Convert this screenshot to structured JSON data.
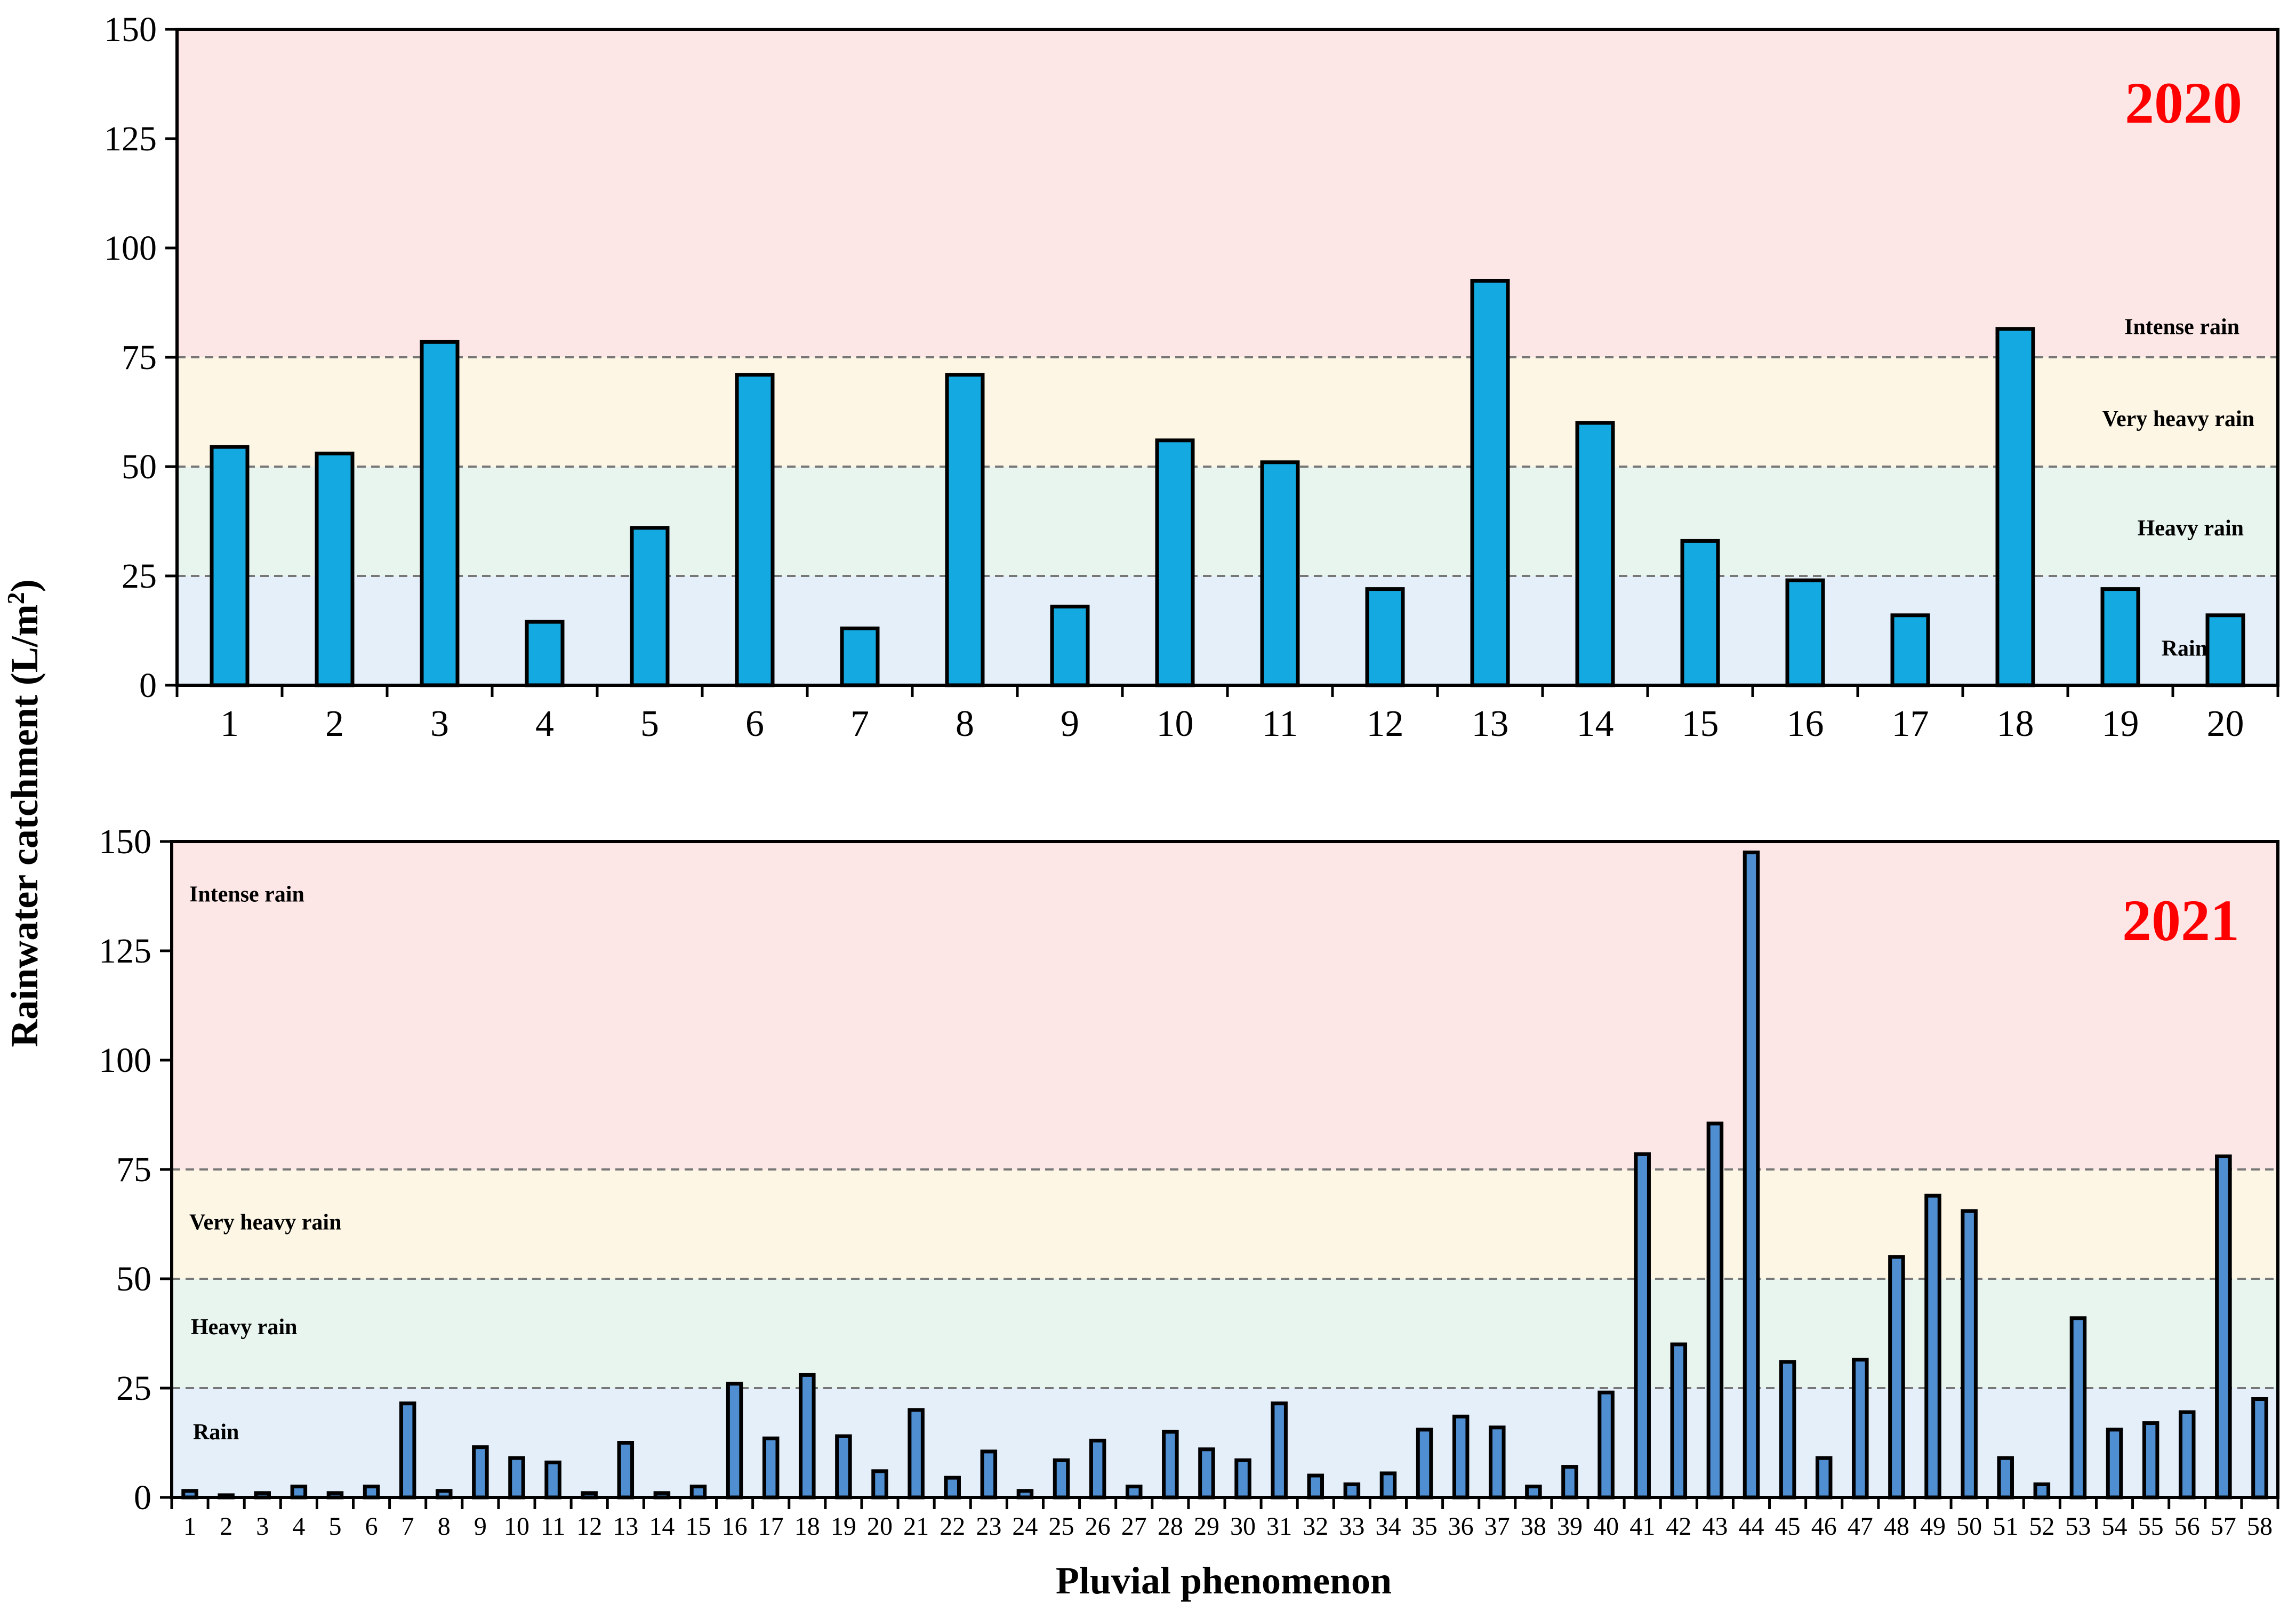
{
  "figure": {
    "ylabel_main": "Rainwater catchment (L/m",
    "ylabel_sup": "2",
    "ylabel_close": ")",
    "xlabel": "Pluvial phenomenon"
  },
  "colors": {
    "intense": "#fde6e6",
    "very_heavy": "#fdf6e4",
    "heavy": "#e8f5ee",
    "rain": "#e5eff9",
    "bar_2020": "#14a9e0",
    "bar_2021": "#4f8ed0",
    "year_text": "#ff0000",
    "threshold_line": "#777777"
  },
  "chart_data": [
    {
      "type": "bar",
      "panel": "2020",
      "year_label": "2020",
      "ylim": [
        0,
        150
      ],
      "yticks": [
        0,
        25,
        50,
        75,
        100,
        125,
        150
      ],
      "thresholds": [
        25,
        50,
        75
      ],
      "zones": [
        {
          "name": "Rain",
          "from": 0,
          "to": 25
        },
        {
          "name": "Heavy rain",
          "from": 25,
          "to": 50
        },
        {
          "name": "Very  heavy rain",
          "from": 50,
          "to": 75
        },
        {
          "name": "Intense rain",
          "from": 75,
          "to": 150
        }
      ],
      "categories": [
        "1",
        "2",
        "3",
        "4",
        "5",
        "6",
        "7",
        "8",
        "9",
        "10",
        "11",
        "12",
        "13",
        "14",
        "15",
        "16",
        "17",
        "18",
        "19",
        "20"
      ],
      "values": [
        54.5,
        53,
        78.5,
        14.5,
        36,
        71,
        13,
        71,
        18,
        56,
        51,
        22,
        92.5,
        60,
        33,
        24,
        16,
        81.5,
        22,
        16
      ]
    },
    {
      "type": "bar",
      "panel": "2021",
      "year_label": "2021",
      "ylim": [
        0,
        150
      ],
      "yticks": [
        0,
        25,
        50,
        75,
        100,
        125,
        150
      ],
      "thresholds": [
        25,
        50,
        75
      ],
      "zones": [
        {
          "name": "Rain",
          "from": 0,
          "to": 25
        },
        {
          "name": "Heavy rain",
          "from": 25,
          "to": 50
        },
        {
          "name": "Very  heavy rain",
          "from": 50,
          "to": 75
        },
        {
          "name": "Intense rain",
          "from": 75,
          "to": 150
        }
      ],
      "categories": [
        "1",
        "2",
        "3",
        "4",
        "5",
        "6",
        "7",
        "8",
        "9",
        "10",
        "11",
        "12",
        "13",
        "14",
        "15",
        "16",
        "17",
        "18",
        "19",
        "20",
        "21",
        "22",
        "23",
        "24",
        "25",
        "26",
        "27",
        "28",
        "29",
        "30",
        "31",
        "32",
        "33",
        "34",
        "35",
        "36",
        "37",
        "38",
        "39",
        "40",
        "41",
        "42",
        "43",
        "44",
        "45",
        "46",
        "47",
        "48",
        "49",
        "50",
        "51",
        "52",
        "53",
        "54",
        "55",
        "56",
        "57",
        "58"
      ],
      "values": [
        1.5,
        0.5,
        1,
        2.5,
        1,
        2.5,
        21.5,
        1.5,
        11.5,
        9,
        8,
        1,
        12.5,
        1,
        2.5,
        26,
        13.5,
        28,
        14,
        6,
        20,
        4.5,
        10.5,
        1.5,
        8.5,
        13,
        2.5,
        15,
        11,
        8.5,
        21.5,
        5,
        3,
        5.5,
        15.5,
        18.5,
        16,
        2.5,
        7,
        24,
        78.5,
        35,
        85.5,
        147.5,
        31,
        9,
        31.5,
        55,
        69,
        65.5,
        9,
        3,
        41,
        15.5,
        17,
        19.5,
        78,
        22.5
      ]
    }
  ]
}
